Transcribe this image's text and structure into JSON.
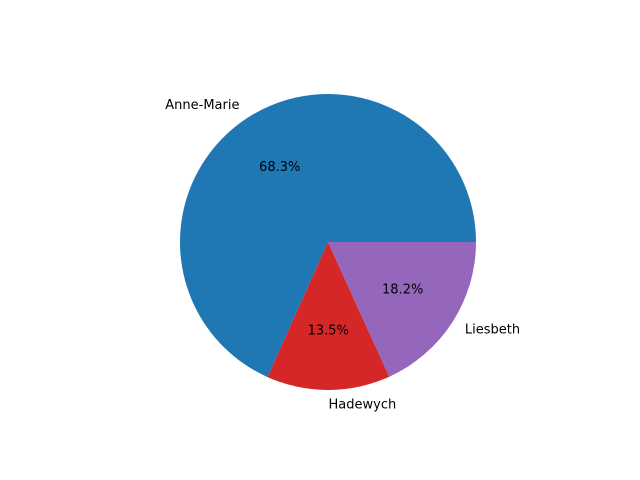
{
  "chart_data": {
    "type": "pie",
    "start_angle_deg": 0,
    "direction": "counterclockwise",
    "slices": [
      {
        "label": "Anne-Marie",
        "value": 68.3,
        "pct_text": "68.3%",
        "color": "#1f77b4"
      },
      {
        "label": "Hadewych",
        "value": 13.5,
        "pct_text": "13.5%",
        "color": "#d62728"
      },
      {
        "label": "Liesbeth",
        "value": 18.2,
        "pct_text": "18.2%",
        "color": "#9467bd"
      }
    ]
  }
}
